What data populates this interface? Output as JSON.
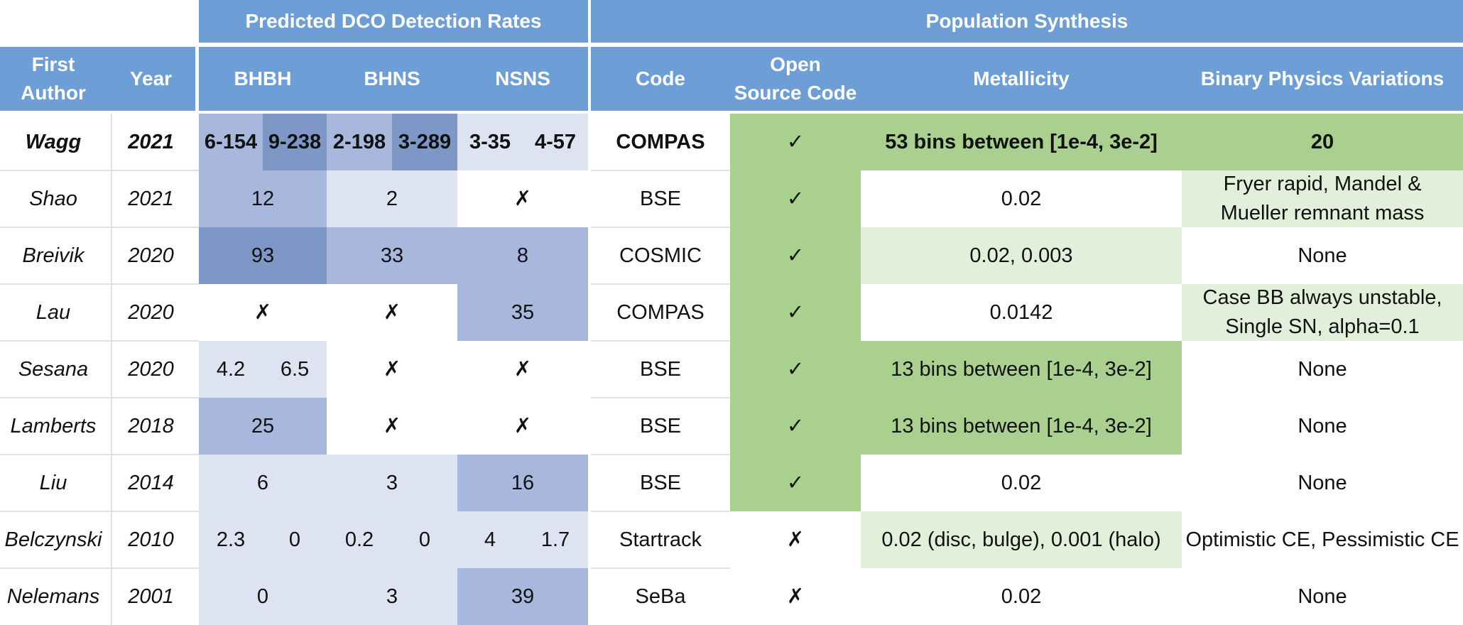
{
  "colors": {
    "header": "#6d9ed6",
    "heat_light": "#dde3f0",
    "heat_mid": "#a8b8dc",
    "heat_dark": "#7f97c7",
    "green_strong": "#a9d08e",
    "green_light": "#e2efda"
  },
  "headers": {
    "group_dco": "Predicted DCO Detection Rates",
    "group_pop": "Population Synthesis",
    "first_author": "First\nAuthor",
    "year": "Year",
    "bhbh": "BHBH",
    "bhns": "BHNS",
    "nsns": "NSNS",
    "code": "Code",
    "open_source": "Open\nSource Code",
    "metallicity": "Metallicity",
    "binary_physics": "Binary Physics Variations"
  },
  "rows": [
    {
      "author": "Wagg",
      "year": "2021",
      "bhbh": [
        "6-154",
        "9-238"
      ],
      "bhns": [
        "2-198",
        "3-289"
      ],
      "nsns": [
        "3-35",
        "4-57"
      ],
      "code": "COMPAS",
      "open": "✓",
      "metallicity": "53 bins between [1e-4, 3e-2]",
      "physics": "20"
    },
    {
      "author": "Shao",
      "year": "2021",
      "bhbh": [
        "12"
      ],
      "bhns": [
        "2"
      ],
      "nsns": [
        "✗"
      ],
      "code": "BSE",
      "open": "✓",
      "metallicity": "0.02",
      "physics": "Fryer rapid, Mandel &\nMueller remnant mass"
    },
    {
      "author": "Breivik",
      "year": "2020",
      "bhbh": [
        "93"
      ],
      "bhns": [
        "33"
      ],
      "nsns": [
        "8"
      ],
      "code": "COSMIC",
      "open": "✓",
      "metallicity": "0.02, 0.003",
      "physics": "None"
    },
    {
      "author": "Lau",
      "year": "2020",
      "bhbh": [
        "✗"
      ],
      "bhns": [
        "✗"
      ],
      "nsns": [
        "35"
      ],
      "code": "COMPAS",
      "open": "✓",
      "metallicity": "0.0142",
      "physics": "Case BB always unstable,\nSingle SN, alpha=0.1"
    },
    {
      "author": "Sesana",
      "year": "2020",
      "bhbh": [
        "4.2",
        "6.5"
      ],
      "bhns": [
        "✗"
      ],
      "nsns": [
        "✗"
      ],
      "code": "BSE",
      "open": "✓",
      "metallicity": "13 bins between [1e-4, 3e-2]",
      "physics": "None"
    },
    {
      "author": "Lamberts",
      "year": "2018",
      "bhbh": [
        "25"
      ],
      "bhns": [
        "✗"
      ],
      "nsns": [
        "✗"
      ],
      "code": "BSE",
      "open": "✓",
      "metallicity": "13 bins between [1e-4, 3e-2]",
      "physics": "None"
    },
    {
      "author": "Liu",
      "year": "2014",
      "bhbh": [
        "6"
      ],
      "bhns": [
        "3"
      ],
      "nsns": [
        "16"
      ],
      "code": "BSE",
      "open": "✓",
      "metallicity": "0.02",
      "physics": "None"
    },
    {
      "author": "Belczynski",
      "year": "2010",
      "bhbh": [
        "2.3",
        "0"
      ],
      "bhns": [
        "0.2",
        "0"
      ],
      "nsns": [
        "4",
        "1.7"
      ],
      "code": "Startrack",
      "open": "✗",
      "metallicity": "0.02 (disc, bulge), 0.001 (halo)",
      "physics": "Optimistic CE, Pessimistic CE"
    },
    {
      "author": "Nelemans",
      "year": "2001",
      "bhbh": [
        "0"
      ],
      "bhns": [
        "3"
      ],
      "nsns": [
        "39"
      ],
      "code": "SeBa",
      "open": "✗",
      "metallicity": "0.02",
      "physics": "None"
    }
  ]
}
